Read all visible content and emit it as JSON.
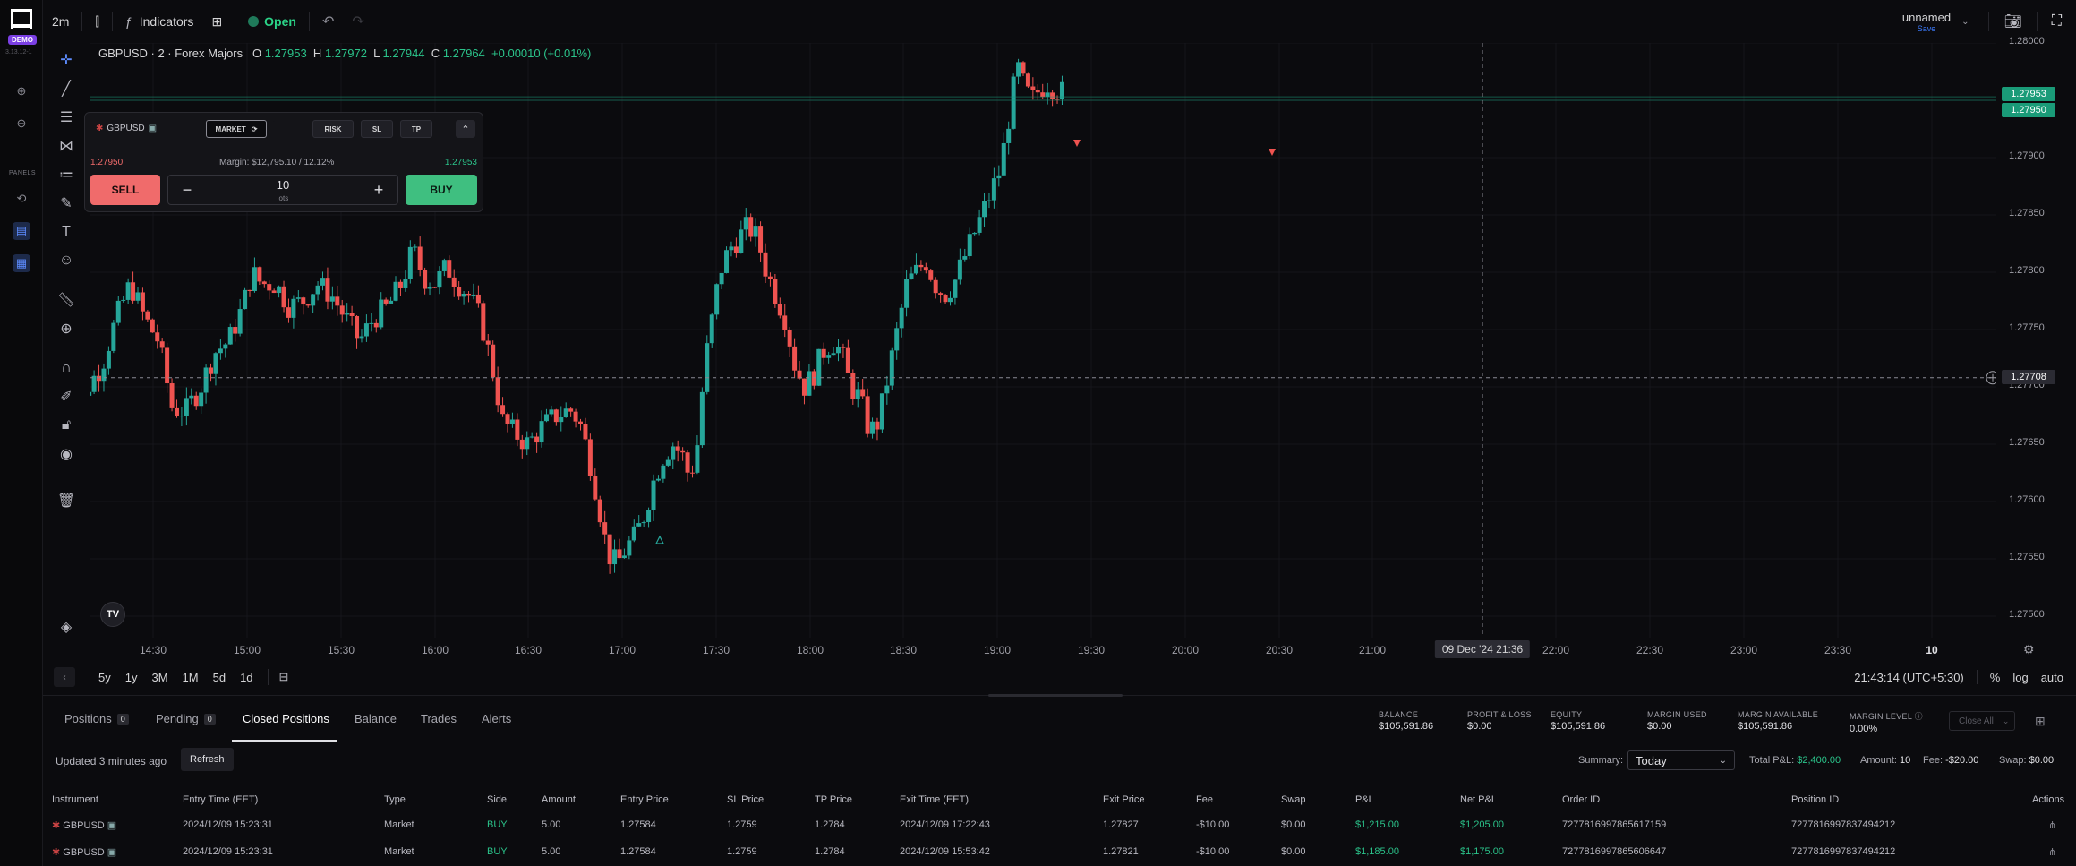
{
  "app": {
    "badge": "DEMO",
    "version": "3.13.12-1",
    "panels_label": "PANELS"
  },
  "topbar": {
    "timeframe": "2m",
    "indicators_label": "Indicators",
    "status_label": "Open",
    "layout_name": "unnamed",
    "save_label": "Save"
  },
  "ticker": {
    "symbol": "GBPUSD · 2 · Forex Majors",
    "o_label": "O",
    "o_value": "1.27953",
    "h_label": "H",
    "h_value": "1.27972",
    "l_label": "L",
    "l_value": "1.27944",
    "c_label": "C",
    "c_value": "1.27964",
    "change": "+0.00010 (+0.01%)"
  },
  "order_panel": {
    "symbol": "GBPUSD",
    "mode": "MARKET",
    "chips": [
      "RISK",
      "SL",
      "TP"
    ],
    "bid": "1.27950",
    "ask": "1.27953",
    "margin": "Margin: $12,795.10 / 12.12%",
    "sell_label": "SELL",
    "buy_label": "BUY",
    "qty": "10",
    "qty_unit": "lots"
  },
  "price_axis": {
    "ticks": [
      "1.28000",
      "1.27950",
      "1.27900",
      "1.27850",
      "1.27800",
      "1.27750",
      "1.27700",
      "1.27650",
      "1.27600",
      "1.27550",
      "1.27500"
    ],
    "ask_tag": "1.27953",
    "bid_tag": "1.27950",
    "crosshair_tag": "1.27708",
    "colors": {
      "ask_tag": "#1a9b78",
      "bid_tag": "#1a9b78",
      "cross_tag": "#2b2b33"
    }
  },
  "time_axis": {
    "ticks": [
      "14:30",
      "15:00",
      "15:30",
      "16:00",
      "16:30",
      "17:00",
      "17:30",
      "18:00",
      "18:30",
      "19:00",
      "19:30",
      "20:00",
      "20:30",
      "21:00",
      "22:00",
      "22:30",
      "23:00",
      "23:30",
      "10"
    ],
    "crosshair_label": "09 Dec '24   21:36"
  },
  "range_bar": {
    "ranges": [
      "5y",
      "1y",
      "3M",
      "1M",
      "5d",
      "1d"
    ],
    "clock": "21:43:14 (UTC+5:30)",
    "percent": "%",
    "log": "log",
    "auto": "auto"
  },
  "chart_data": {
    "type": "candlestick",
    "symbol": "GBPUSD",
    "interval": "2m",
    "ylim": [
      1.2748,
      1.28
    ],
    "up_color": "#26a69a",
    "down_color": "#ef5350"
  },
  "bottom": {
    "tabs": [
      {
        "label": "Positions",
        "count": "0"
      },
      {
        "label": "Pending",
        "count": "0"
      },
      {
        "label": "Closed Positions"
      },
      {
        "label": "Balance"
      },
      {
        "label": "Trades"
      },
      {
        "label": "Alerts"
      }
    ],
    "account": [
      {
        "label": "BALANCE",
        "value": "$105,591.86"
      },
      {
        "label": "PROFIT & LOSS",
        "value": "$0.00"
      },
      {
        "label": "EQUITY",
        "value": "$105,591.86"
      },
      {
        "label": "MARGIN USED",
        "value": "$0.00"
      },
      {
        "label": "MARGIN AVAILABLE",
        "value": "$105,591.86"
      },
      {
        "label": "MARGIN LEVEL",
        "value": "0.00%"
      }
    ],
    "close_all": "Close All",
    "updated": "Updated 3 minutes ago",
    "refresh": "Refresh",
    "summary_label": "Summary:",
    "summary_value": "Today",
    "total_pl_label": "Total P&L:",
    "total_pl_value": "$2,400.00",
    "amount_label": "Amount:",
    "amount_value": "10",
    "fee_label": "Fee:",
    "fee_value": "-$20.00",
    "swap_label": "Swap:",
    "swap_value": "$0.00",
    "columns": [
      "Instrument",
      "Entry Time (EET)",
      "Type",
      "Side",
      "Amount",
      "Entry Price",
      "SL Price",
      "TP Price",
      "Exit Time (EET)",
      "Exit Price",
      "Fee",
      "Swap",
      "P&L",
      "Net P&L",
      "Order ID",
      "Position ID",
      "Actions"
    ],
    "rows": [
      [
        "GBPUSD",
        "2024/12/09 15:23:31",
        "Market",
        "BUY",
        "5.00",
        "1.27584",
        "1.2759",
        "1.2784",
        "2024/12/09 17:22:43",
        "1.27827",
        "-$10.00",
        "$0.00",
        "$1,215.00",
        "$1,205.00",
        "7277816997865617159",
        "7277816997837494212"
      ],
      [
        "GBPUSD",
        "2024/12/09 15:23:31",
        "Market",
        "BUY",
        "5.00",
        "1.27584",
        "1.2759",
        "1.2784",
        "2024/12/09 15:53:42",
        "1.27821",
        "-$10.00",
        "$0.00",
        "$1,185.00",
        "$1,175.00",
        "7277816997865606647",
        "7277816997837494212"
      ]
    ]
  }
}
